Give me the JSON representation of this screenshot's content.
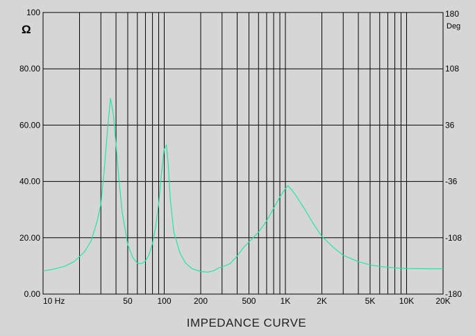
{
  "chart_data": {
    "type": "line",
    "title": "IMPEDANCE  CURVE",
    "x_scale": "log",
    "xlim": [
      10,
      20000
    ],
    "ylim": [
      0,
      100
    ],
    "y2lim": [
      -180,
      180
    ],
    "left_unit": "Ω",
    "right_unit": "Deg",
    "x_ticks": [
      {
        "value": 10,
        "label": "10  Hz"
      },
      {
        "value": 50,
        "label": "50"
      },
      {
        "value": 100,
        "label": "100"
      },
      {
        "value": 200,
        "label": "200"
      },
      {
        "value": 500,
        "label": "500"
      },
      {
        "value": 1000,
        "label": "1K"
      },
      {
        "value": 2000,
        "label": "2K"
      },
      {
        "value": 5000,
        "label": "5K"
      },
      {
        "value": 10000,
        "label": "10K"
      },
      {
        "value": 20000,
        "label": "20K"
      }
    ],
    "y_ticks": [
      {
        "value": 0,
        "label": "0.00"
      },
      {
        "value": 20,
        "label": "20.00"
      },
      {
        "value": 40,
        "label": "40.00"
      },
      {
        "value": 60,
        "label": "60.00"
      },
      {
        "value": 80,
        "label": "80.00"
      },
      {
        "value": 100,
        "label": "100"
      }
    ],
    "y2_ticks": [
      {
        "value": -180,
        "label": "-180"
      },
      {
        "value": -108,
        "label": "-108"
      },
      {
        "value": -36,
        "label": "-36"
      },
      {
        "value": 36,
        "label": "36"
      },
      {
        "value": 108,
        "label": "108"
      },
      {
        "value": 180,
        "label": "180"
      }
    ],
    "grid_frequencies": [
      20,
      30,
      40,
      50,
      60,
      70,
      80,
      90,
      100,
      200,
      300,
      400,
      500,
      600,
      700,
      800,
      900,
      1000,
      2000,
      3000,
      4000,
      5000,
      6000,
      7000,
      8000,
      9000,
      10000
    ],
    "series": [
      {
        "color": "#22e6a0",
        "x": [
          10,
          12,
          15,
          18,
          22,
          25,
          28,
          30,
          32,
          34,
          36,
          38,
          40,
          42,
          45,
          48,
          50,
          55,
          60,
          65,
          70,
          75,
          80,
          85,
          90,
          95,
          100,
          104,
          108,
          112,
          120,
          135,
          150,
          170,
          200,
          230,
          260,
          280,
          300,
          350,
          400,
          450,
          500,
          600,
          700,
          800,
          900,
          1000,
          1050,
          1100,
          1200,
          1400,
          1700,
          2000,
          2500,
          3000,
          4000,
          5000,
          6000,
          8000,
          10000,
          15000,
          20000
        ],
        "y": [
          8.2,
          8.8,
          9.8,
          11.5,
          15,
          19,
          26,
          32,
          44,
          58,
          69.5,
          64,
          53,
          42,
          29,
          22,
          17.5,
          13,
          11,
          10.8,
          11.8,
          14,
          18,
          24,
          32,
          43,
          51.5,
          53,
          46,
          34,
          22,
          14.5,
          11,
          9,
          8,
          7.8,
          8.4,
          9.3,
          9.6,
          10.8,
          13.5,
          16.5,
          18.5,
          22,
          26,
          30.5,
          34.5,
          37.5,
          38.5,
          37.5,
          35.5,
          31,
          25,
          20.5,
          16.5,
          13.8,
          11.5,
          10.4,
          9.8,
          9.3,
          9.1,
          9,
          9
        ]
      }
    ]
  }
}
